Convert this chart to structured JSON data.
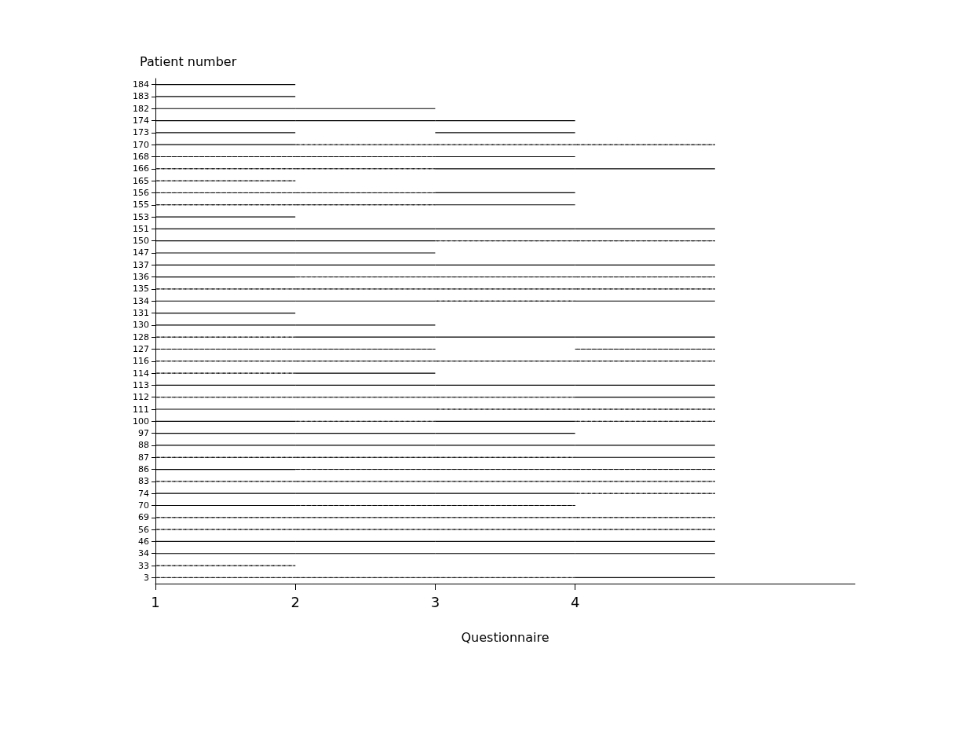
{
  "chart_data": {
    "type": "bar",
    "orientation": "horizontal",
    "xlabel": "Questionnaire",
    "ylabel": "Patient number",
    "categories": [
      "184",
      "183",
      "182",
      "174",
      "173",
      "170",
      "168",
      "166",
      "165",
      "156",
      "155",
      "153",
      "151",
      "150",
      "147",
      "137",
      "136",
      "135",
      "134",
      "131",
      "130",
      "128",
      "127",
      "116",
      "114",
      "113",
      "112",
      "111",
      "100",
      "97",
      "88",
      "87",
      "86",
      "83",
      "74",
      "70",
      "69",
      "56",
      "46",
      "34",
      "33",
      "3"
    ],
    "xlim": [
      1,
      6
    ],
    "xticks": [
      1,
      2,
      3,
      4
    ],
    "series": [
      {
        "color": "#000000",
        "line_style": "solid",
        "base": [
          1,
          1,
          1,
          1,
          1,
          1,
          null,
          null,
          null,
          null,
          null,
          1,
          1,
          1,
          1,
          1,
          1,
          null,
          1,
          1,
          1,
          null,
          null,
          null,
          null,
          1,
          null,
          1,
          1,
          1,
          1,
          null,
          1,
          null,
          1,
          1,
          null,
          null,
          1,
          1,
          null,
          null
        ],
        "values": [
          1,
          1,
          1,
          1,
          1,
          1,
          null,
          null,
          null,
          null,
          null,
          1,
          1,
          1,
          1,
          1,
          1,
          null,
          1,
          1,
          1,
          null,
          null,
          null,
          null,
          1,
          null,
          1,
          1,
          1,
          1,
          null,
          1,
          null,
          1,
          1,
          null,
          null,
          1,
          1,
          null,
          null
        ]
      },
      {
        "color": "#000000",
        "line_style": "dashed",
        "base": [
          null,
          null,
          null,
          null,
          null,
          null,
          1,
          1,
          1,
          1,
          1,
          null,
          null,
          null,
          null,
          null,
          null,
          1,
          null,
          null,
          null,
          1,
          1,
          1,
          1,
          null,
          1,
          null,
          null,
          null,
          null,
          1,
          null,
          1,
          null,
          null,
          1,
          1,
          null,
          null,
          1,
          1
        ],
        "values": [
          null,
          null,
          null,
          null,
          null,
          null,
          1,
          1,
          1,
          1,
          1,
          null,
          null,
          null,
          null,
          null,
          null,
          1,
          null,
          null,
          null,
          1,
          1,
          1,
          1,
          null,
          1,
          null,
          null,
          null,
          null,
          1,
          null,
          1,
          null,
          null,
          1,
          1,
          null,
          null,
          1,
          1
        ]
      },
      {
        "color": "#000000",
        "line_style": "solid",
        "base": [
          null,
          null,
          2,
          2,
          null,
          null,
          null,
          null,
          null,
          null,
          null,
          null,
          2,
          2,
          2,
          2,
          null,
          null,
          2,
          null,
          2,
          2,
          null,
          null,
          2,
          2,
          null,
          2,
          null,
          2,
          2,
          null,
          null,
          null,
          2,
          null,
          null,
          null,
          2,
          2,
          null,
          null
        ],
        "values": [
          null,
          null,
          1,
          1,
          null,
          null,
          null,
          null,
          null,
          null,
          null,
          null,
          1,
          1,
          1,
          1,
          null,
          null,
          1,
          null,
          1,
          1,
          null,
          null,
          1,
          1,
          null,
          1,
          null,
          1,
          1,
          null,
          null,
          null,
          1,
          null,
          null,
          null,
          1,
          1,
          null,
          null
        ]
      },
      {
        "color": "#000000",
        "line_style": "dashed",
        "base": [
          null,
          null,
          null,
          null,
          null,
          2,
          2,
          2,
          null,
          2,
          2,
          null,
          null,
          null,
          null,
          null,
          2,
          2,
          null,
          null,
          null,
          null,
          2,
          2,
          null,
          null,
          2,
          null,
          2,
          null,
          null,
          2,
          2,
          2,
          null,
          2,
          2,
          2,
          null,
          null,
          null,
          2
        ],
        "values": [
          null,
          null,
          null,
          null,
          null,
          1,
          1,
          1,
          null,
          1,
          1,
          null,
          null,
          null,
          null,
          null,
          1,
          1,
          null,
          null,
          null,
          null,
          1,
          1,
          null,
          null,
          1,
          null,
          1,
          null,
          null,
          1,
          1,
          1,
          null,
          1,
          1,
          1,
          null,
          null,
          null,
          1
        ]
      },
      {
        "color": "#000000",
        "line_style": "solid",
        "base": [
          null,
          null,
          null,
          3,
          3,
          null,
          3,
          3,
          null,
          3,
          3,
          null,
          3,
          null,
          null,
          3,
          null,
          null,
          null,
          null,
          null,
          3,
          null,
          null,
          null,
          3,
          null,
          null,
          3,
          3,
          3,
          null,
          null,
          null,
          3,
          null,
          null,
          null,
          3,
          3,
          null,
          null
        ],
        "values": [
          null,
          null,
          null,
          1,
          1,
          null,
          1,
          1,
          null,
          1,
          1,
          null,
          1,
          null,
          null,
          1,
          null,
          null,
          null,
          null,
          null,
          1,
          null,
          null,
          null,
          1,
          null,
          null,
          1,
          1,
          1,
          null,
          null,
          null,
          1,
          null,
          null,
          null,
          1,
          1,
          null,
          null
        ]
      },
      {
        "color": "#000000",
        "line_style": "dashed",
        "base": [
          null,
          null,
          null,
          null,
          null,
          3,
          null,
          null,
          null,
          null,
          null,
          null,
          null,
          3,
          null,
          null,
          3,
          3,
          3,
          null,
          null,
          null,
          null,
          3,
          null,
          null,
          3,
          3,
          null,
          null,
          null,
          3,
          3,
          3,
          null,
          3,
          3,
          3,
          null,
          null,
          null,
          3
        ],
        "values": [
          null,
          null,
          null,
          null,
          null,
          1,
          null,
          null,
          null,
          null,
          null,
          null,
          null,
          1,
          null,
          null,
          1,
          1,
          1,
          null,
          null,
          null,
          null,
          1,
          null,
          null,
          1,
          1,
          null,
          null,
          null,
          1,
          1,
          1,
          null,
          1,
          1,
          1,
          null,
          null,
          null,
          1
        ]
      },
      {
        "color": "#000000",
        "line_style": "solid",
        "base": [
          null,
          null,
          null,
          null,
          null,
          null,
          null,
          4,
          null,
          null,
          null,
          null,
          4,
          null,
          null,
          4,
          null,
          null,
          4,
          null,
          null,
          4,
          null,
          null,
          null,
          4,
          4,
          null,
          null,
          null,
          4,
          4,
          null,
          null,
          null,
          null,
          null,
          null,
          4,
          4,
          null,
          4
        ],
        "values": [
          null,
          null,
          null,
          null,
          null,
          null,
          null,
          1,
          null,
          null,
          null,
          null,
          1,
          null,
          null,
          1,
          null,
          null,
          1,
          null,
          null,
          1,
          null,
          null,
          null,
          1,
          1,
          null,
          null,
          null,
          1,
          1,
          null,
          null,
          null,
          null,
          null,
          null,
          1,
          1,
          null,
          1
        ]
      },
      {
        "color": "#000000",
        "line_style": "dashed",
        "base": [
          null,
          null,
          null,
          null,
          null,
          4,
          null,
          null,
          null,
          null,
          null,
          null,
          null,
          4,
          null,
          null,
          4,
          4,
          null,
          null,
          null,
          null,
          4,
          4,
          null,
          null,
          null,
          4,
          4,
          null,
          null,
          null,
          4,
          4,
          4,
          null,
          4,
          4,
          null,
          null,
          null,
          null
        ],
        "values": [
          null,
          null,
          null,
          null,
          null,
          1,
          null,
          null,
          null,
          null,
          null,
          null,
          null,
          1,
          null,
          null,
          1,
          1,
          null,
          null,
          null,
          null,
          1,
          1,
          null,
          null,
          null,
          1,
          1,
          null,
          null,
          null,
          1,
          1,
          1,
          null,
          1,
          1,
          null,
          null,
          null,
          null
        ]
      }
    ]
  }
}
